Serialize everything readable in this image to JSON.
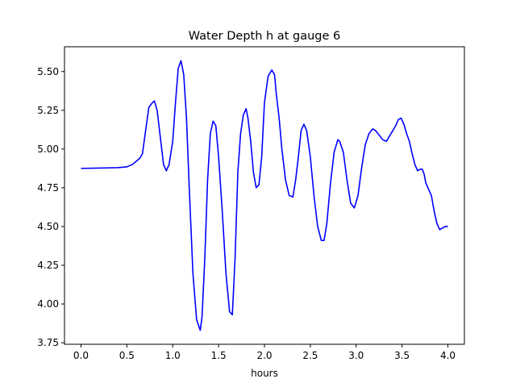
{
  "chart_data": {
    "type": "line",
    "title": "Water Depth h at gauge 6",
    "xlabel": "hours",
    "ylabel": "",
    "xlim": [
      -0.18,
      4.18
    ],
    "ylim": [
      3.74,
      5.66
    ],
    "grid": false,
    "xticks": [
      0.0,
      0.5,
      1.0,
      1.5,
      2.0,
      2.5,
      3.0,
      3.5,
      4.0
    ],
    "xtick_labels": [
      "0.0",
      "0.5",
      "1.0",
      "1.5",
      "2.0",
      "2.5",
      "3.0",
      "3.5",
      "4.0"
    ],
    "yticks": [
      3.75,
      4.0,
      4.25,
      4.5,
      4.75,
      5.0,
      5.25,
      5.5
    ],
    "ytick_labels": [
      "3.75",
      "4.00",
      "4.25",
      "4.50",
      "4.75",
      "5.00",
      "5.25",
      "5.50"
    ],
    "series": [
      {
        "color": "#0000ff",
        "x": [
          0.0,
          0.2,
          0.4,
          0.5,
          0.56,
          0.6,
          0.64,
          0.67,
          0.7,
          0.74,
          0.78,
          0.8,
          0.83,
          0.86,
          0.9,
          0.93,
          0.96,
          1.0,
          1.03,
          1.06,
          1.09,
          1.12,
          1.15,
          1.18,
          1.22,
          1.26,
          1.3,
          1.32,
          1.35,
          1.38,
          1.41,
          1.44,
          1.47,
          1.5,
          1.54,
          1.58,
          1.62,
          1.65,
          1.68,
          1.71,
          1.74,
          1.77,
          1.8,
          1.82,
          1.85,
          1.88,
          1.91,
          1.94,
          1.97,
          2.0,
          2.04,
          2.08,
          2.11,
          2.13,
          2.16,
          2.19,
          2.23,
          2.27,
          2.31,
          2.34,
          2.37,
          2.4,
          2.43,
          2.46,
          2.5,
          2.54,
          2.58,
          2.62,
          2.65,
          2.68,
          2.72,
          2.76,
          2.8,
          2.82,
          2.86,
          2.9,
          2.94,
          2.98,
          3.02,
          3.06,
          3.1,
          3.14,
          3.18,
          3.21,
          3.25,
          3.29,
          3.33,
          3.37,
          3.4,
          3.43,
          3.46,
          3.49,
          3.52,
          3.55,
          3.58,
          3.61,
          3.64,
          3.67,
          3.7,
          3.72,
          3.74,
          3.76,
          3.79,
          3.82,
          3.85,
          3.88,
          3.91,
          3.94,
          3.97,
          4.0
        ],
        "y": [
          4.875,
          4.877,
          4.88,
          4.885,
          4.9,
          4.92,
          4.94,
          4.97,
          5.1,
          5.27,
          5.3,
          5.31,
          5.25,
          5.1,
          4.9,
          4.86,
          4.9,
          5.05,
          5.3,
          5.52,
          5.57,
          5.48,
          5.2,
          4.75,
          4.2,
          3.9,
          3.83,
          3.92,
          4.3,
          4.8,
          5.1,
          5.18,
          5.15,
          4.95,
          4.6,
          4.2,
          3.95,
          3.93,
          4.3,
          4.85,
          5.1,
          5.22,
          5.26,
          5.2,
          5.05,
          4.85,
          4.75,
          4.77,
          4.95,
          5.3,
          5.47,
          5.51,
          5.48,
          5.35,
          5.2,
          5.0,
          4.8,
          4.7,
          4.69,
          4.8,
          4.95,
          5.12,
          5.16,
          5.12,
          4.95,
          4.7,
          4.5,
          4.41,
          4.41,
          4.52,
          4.78,
          4.98,
          5.06,
          5.05,
          4.98,
          4.8,
          4.65,
          4.62,
          4.7,
          4.88,
          5.03,
          5.1,
          5.13,
          5.12,
          5.09,
          5.06,
          5.05,
          5.09,
          5.12,
          5.15,
          5.19,
          5.2,
          5.16,
          5.1,
          5.05,
          4.97,
          4.9,
          4.86,
          4.87,
          4.87,
          4.84,
          4.78,
          4.74,
          4.7,
          4.6,
          4.52,
          4.48,
          4.49,
          4.5,
          4.5
        ]
      }
    ]
  }
}
